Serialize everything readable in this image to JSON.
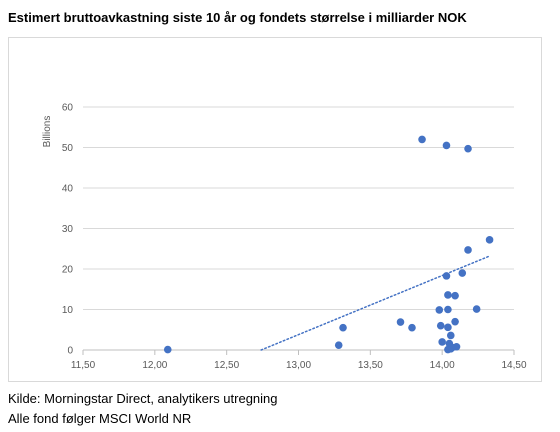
{
  "title": "Estimert bruttoavkastning siste 10 år og fondets størrelse i milliarder NOK",
  "notes": [
    "Kilde: Morningstar Direct, analytikers utregning",
    "Alle fond følger MSCI World NR"
  ],
  "chart_data": {
    "type": "scatter",
    "title": "",
    "xlabel": "",
    "ylabel": "",
    "y_display_units": "Billions",
    "xlim": [
      11.5,
      14.5
    ],
    "ylim": [
      0,
      60
    ],
    "x_ticks": [
      "11,50",
      "12,00",
      "12,50",
      "13,00",
      "13,50",
      "14,00",
      "14,50"
    ],
    "y_ticks": [
      "0",
      "10",
      "20",
      "30",
      "40",
      "50",
      "60"
    ],
    "grid": "horizontal",
    "legend": "none",
    "marker_color": "#4472c4",
    "trendline": {
      "type": "linear",
      "style": "dotted",
      "x": [
        12.74,
        14.33
      ],
      "y": [
        0,
        23.2
      ]
    },
    "points": [
      {
        "x": 12.09,
        "y": 0.1
      },
      {
        "x": 13.28,
        "y": 1.2
      },
      {
        "x": 13.31,
        "y": 5.5
      },
      {
        "x": 13.71,
        "y": 6.9
      },
      {
        "x": 13.79,
        "y": 5.5
      },
      {
        "x": 13.86,
        "y": 52.0
      },
      {
        "x": 13.98,
        "y": 9.9
      },
      {
        "x": 13.99,
        "y": 6.0
      },
      {
        "x": 14.0,
        "y": 2.0
      },
      {
        "x": 14.03,
        "y": 50.5
      },
      {
        "x": 14.03,
        "y": 18.3
      },
      {
        "x": 14.04,
        "y": 13.6
      },
      {
        "x": 14.04,
        "y": 10.0
      },
      {
        "x": 14.04,
        "y": 5.6
      },
      {
        "x": 14.04,
        "y": 0.1
      },
      {
        "x": 14.05,
        "y": 1.6
      },
      {
        "x": 14.06,
        "y": 3.6
      },
      {
        "x": 14.06,
        "y": 0.3
      },
      {
        "x": 14.07,
        "y": 0.6
      },
      {
        "x": 14.09,
        "y": 7.0
      },
      {
        "x": 14.09,
        "y": 13.4
      },
      {
        "x": 14.1,
        "y": 0.8
      },
      {
        "x": 14.14,
        "y": 19.0
      },
      {
        "x": 14.18,
        "y": 24.7
      },
      {
        "x": 14.18,
        "y": 49.7
      },
      {
        "x": 14.24,
        "y": 10.1
      },
      {
        "x": 14.33,
        "y": 27.2
      }
    ]
  }
}
